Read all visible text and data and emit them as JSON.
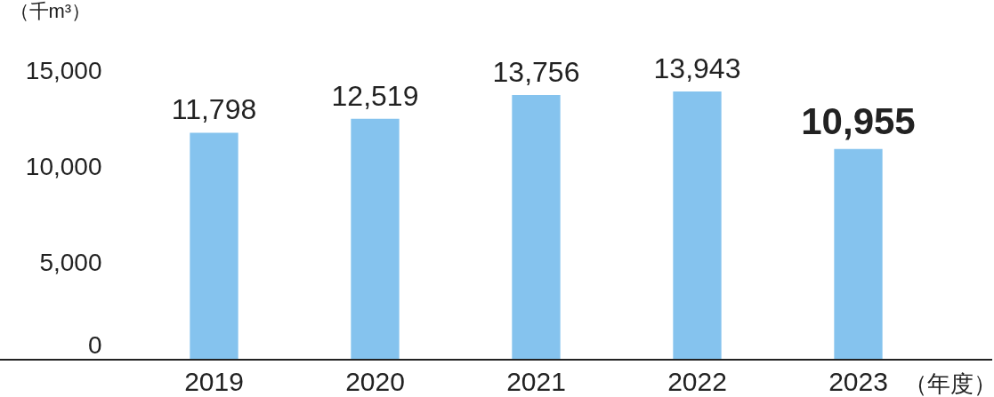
{
  "chart_data": {
    "type": "bar",
    "categories": [
      "2019",
      "2020",
      "2021",
      "2022",
      "2023"
    ],
    "values": [
      11798,
      12519,
      13756,
      13943,
      10955
    ],
    "color": "#85c3ee",
    "ylim": [
      0,
      15000
    ],
    "yticks": [
      {
        "value": 0,
        "label": "0"
      },
      {
        "value": 5000,
        "label": "5,000"
      },
      {
        "value": 10000,
        "label": "10,000"
      },
      {
        "value": 15000,
        "label": "15,000"
      }
    ],
    "ylabel": "（千m³）",
    "xlabel": "（年度）",
    "value_labels": [
      "11,798",
      "12,519",
      "13,756",
      "13,943",
      "10,955"
    ],
    "grid": false
  }
}
